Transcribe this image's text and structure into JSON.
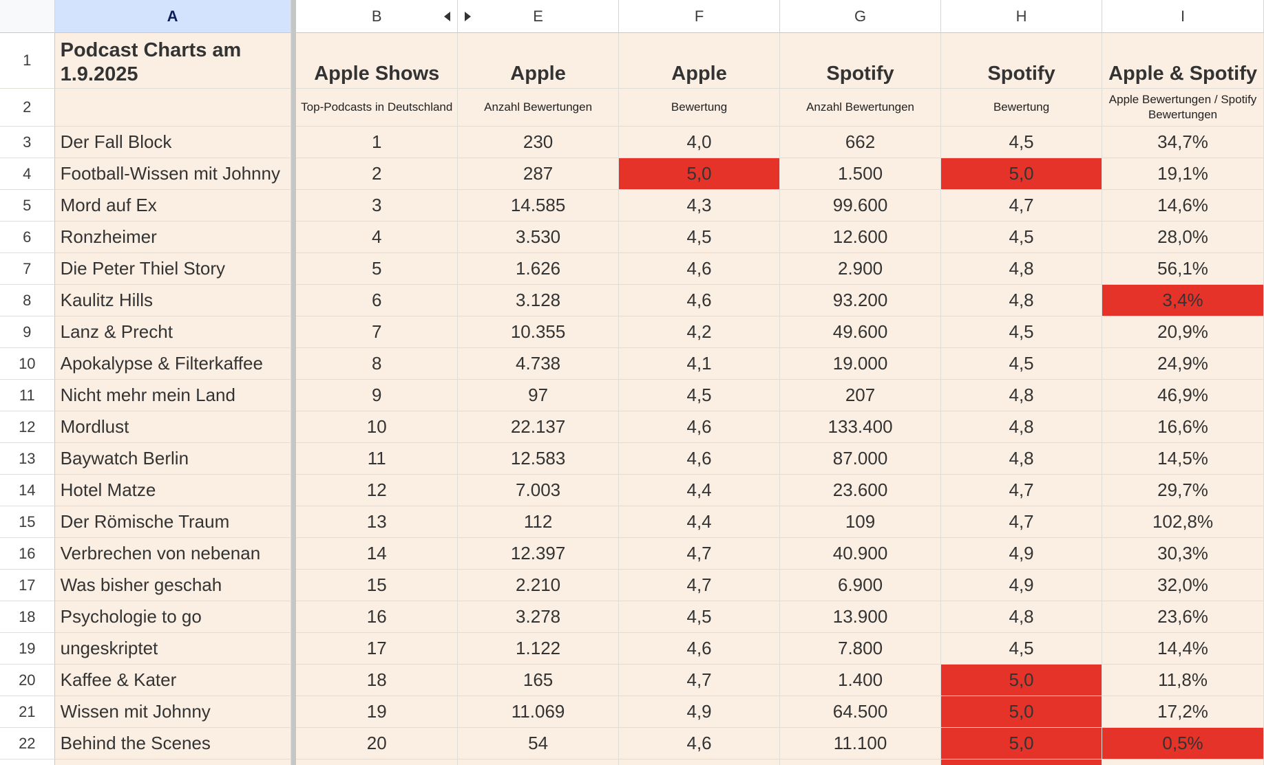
{
  "columns": [
    {
      "letter": "A",
      "selected": true
    },
    {
      "letter": "B"
    },
    {
      "letter": "E"
    },
    {
      "letter": "F"
    },
    {
      "letter": "G"
    },
    {
      "letter": "H"
    },
    {
      "letter": "I"
    }
  ],
  "title": "Podcast Charts am 1.9.2025",
  "headers": {
    "big": [
      "Apple Shows",
      "Apple",
      "Apple",
      "Spotify",
      "Spotify",
      "Apple & Spotify"
    ],
    "small": [
      "Top-Podcasts in Deutschland",
      "Anzahl Bewertungen",
      "Bewertung",
      "Anzahl Bewertungen",
      "Bewertung",
      "Apple Bewertungen / Spotify Bewertungen"
    ]
  },
  "rows": [
    {
      "num": "3",
      "name": "Der Fall Block",
      "rank": "1",
      "apple_count": "230",
      "apple_rating": "4,0",
      "spotify_count": "662",
      "spotify_rating": "4,5",
      "ratio": "34,7%"
    },
    {
      "num": "4",
      "name": "Football-Wissen mit Johnny",
      "rank": "2",
      "apple_count": "287",
      "apple_rating": "5,0",
      "spotify_count": "1.500",
      "spotify_rating": "5,0",
      "ratio": "19,1%",
      "highlight": [
        "apple_rating",
        "spotify_rating"
      ]
    },
    {
      "num": "5",
      "name": "Mord auf Ex",
      "rank": "3",
      "apple_count": "14.585",
      "apple_rating": "4,3",
      "spotify_count": "99.600",
      "spotify_rating": "4,7",
      "ratio": "14,6%"
    },
    {
      "num": "6",
      "name": "Ronzheimer",
      "rank": "4",
      "apple_count": "3.530",
      "apple_rating": "4,5",
      "spotify_count": "12.600",
      "spotify_rating": "4,5",
      "ratio": "28,0%"
    },
    {
      "num": "7",
      "name": "Die Peter Thiel Story",
      "rank": "5",
      "apple_count": "1.626",
      "apple_rating": "4,6",
      "spotify_count": "2.900",
      "spotify_rating": "4,8",
      "ratio": "56,1%"
    },
    {
      "num": "8",
      "name": "Kaulitz Hills",
      "rank": "6",
      "apple_count": "3.128",
      "apple_rating": "4,6",
      "spotify_count": "93.200",
      "spotify_rating": "4,8",
      "ratio": "3,4%",
      "highlight": [
        "ratio"
      ]
    },
    {
      "num": "9",
      "name": "Lanz & Precht",
      "rank": "7",
      "apple_count": "10.355",
      "apple_rating": "4,2",
      "spotify_count": "49.600",
      "spotify_rating": "4,5",
      "ratio": "20,9%"
    },
    {
      "num": "10",
      "name": "Apokalypse & Filterkaffee",
      "rank": "8",
      "apple_count": "4.738",
      "apple_rating": "4,1",
      "spotify_count": "19.000",
      "spotify_rating": "4,5",
      "ratio": "24,9%"
    },
    {
      "num": "11",
      "name": "Nicht mehr mein Land",
      "rank": "9",
      "apple_count": "97",
      "apple_rating": "4,5",
      "spotify_count": "207",
      "spotify_rating": "4,8",
      "ratio": "46,9%"
    },
    {
      "num": "12",
      "name": "Mordlust",
      "rank": "10",
      "apple_count": "22.137",
      "apple_rating": "4,6",
      "spotify_count": "133.400",
      "spotify_rating": "4,8",
      "ratio": "16,6%"
    },
    {
      "num": "13",
      "name": "Baywatch Berlin",
      "rank": "11",
      "apple_count": "12.583",
      "apple_rating": "4,6",
      "spotify_count": "87.000",
      "spotify_rating": "4,8",
      "ratio": "14,5%"
    },
    {
      "num": "14",
      "name": "Hotel Matze",
      "rank": "12",
      "apple_count": "7.003",
      "apple_rating": "4,4",
      "spotify_count": "23.600",
      "spotify_rating": "4,7",
      "ratio": "29,7%"
    },
    {
      "num": "15",
      "name": "Der Römische Traum",
      "rank": "13",
      "apple_count": "112",
      "apple_rating": "4,4",
      "spotify_count": "109",
      "spotify_rating": "4,7",
      "ratio": "102,8%"
    },
    {
      "num": "16",
      "name": "Verbrechen von nebenan",
      "rank": "14",
      "apple_count": "12.397",
      "apple_rating": "4,7",
      "spotify_count": "40.900",
      "spotify_rating": "4,9",
      "ratio": "30,3%"
    },
    {
      "num": "17",
      "name": "Was bisher geschah",
      "rank": "15",
      "apple_count": "2.210",
      "apple_rating": "4,7",
      "spotify_count": "6.900",
      "spotify_rating": "4,9",
      "ratio": "32,0%"
    },
    {
      "num": "18",
      "name": "Psychologie to go",
      "rank": "16",
      "apple_count": "3.278",
      "apple_rating": "4,5",
      "spotify_count": "13.900",
      "spotify_rating": "4,8",
      "ratio": "23,6%"
    },
    {
      "num": "19",
      "name": "ungeskriptet",
      "rank": "17",
      "apple_count": "1.122",
      "apple_rating": "4,6",
      "spotify_count": "7.800",
      "spotify_rating": "4,5",
      "ratio": "14,4%"
    },
    {
      "num": "20",
      "name": "Kaffee & Kater",
      "rank": "18",
      "apple_count": "165",
      "apple_rating": "4,7",
      "spotify_count": "1.400",
      "spotify_rating": "5,0",
      "ratio": "11,8%",
      "highlight": [
        "spotify_rating"
      ]
    },
    {
      "num": "21",
      "name": "Wissen mit Johnny",
      "rank": "19",
      "apple_count": "11.069",
      "apple_rating": "4,9",
      "spotify_count": "64.500",
      "spotify_rating": "5,0",
      "ratio": "17,2%",
      "highlight": [
        "spotify_rating"
      ]
    },
    {
      "num": "22",
      "name": "Behind the Scenes",
      "rank": "20",
      "apple_count": "54",
      "apple_rating": "4,6",
      "spotify_count": "11.100",
      "spotify_rating": "5,0",
      "ratio": "0,5%",
      "highlight": [
        "spotify_rating",
        "ratio"
      ]
    },
    {
      "num": "",
      "name": "",
      "rank": "",
      "apple_count": "",
      "apple_rating": "",
      "spotify_count": "",
      "spotify_rating": "",
      "ratio": "",
      "highlight": [
        "spotify_rating"
      ]
    }
  ],
  "colors": {
    "cell_bg": "#fbefe3",
    "highlight_red": "#e5332a",
    "selected_column_header": "#d3e3fd"
  },
  "icons": {
    "collapse_left": "collapse-left-arrow-icon",
    "expand_right": "expand-right-arrow-icon"
  }
}
